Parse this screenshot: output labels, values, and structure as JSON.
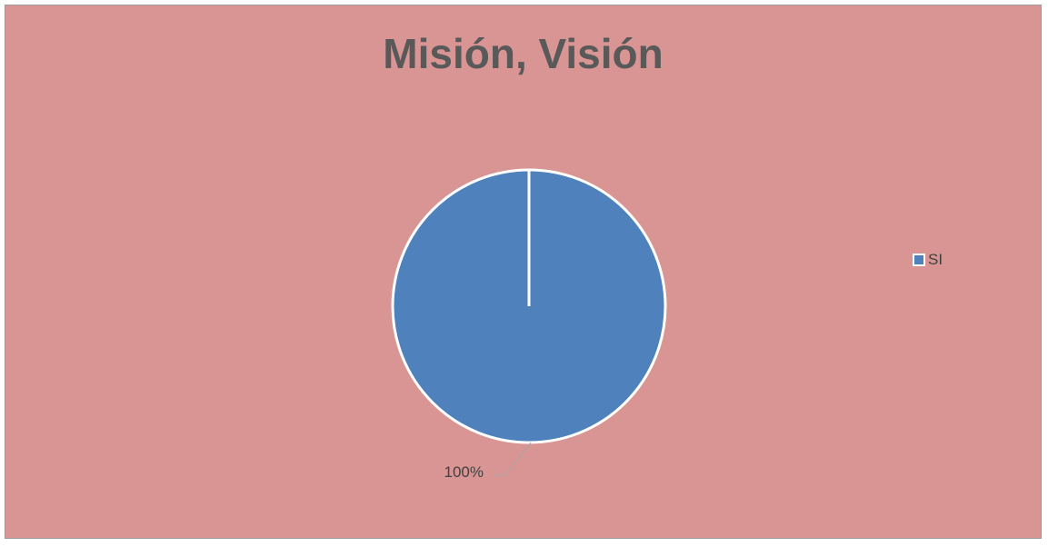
{
  "chart_data": {
    "type": "pie",
    "title": "Misión, Visión",
    "categories": [
      "SI"
    ],
    "values": [
      100
    ],
    "data_labels": [
      "100%"
    ],
    "colors": [
      "#4f81bd"
    ],
    "background": "#d99594",
    "legend_position": "right"
  }
}
